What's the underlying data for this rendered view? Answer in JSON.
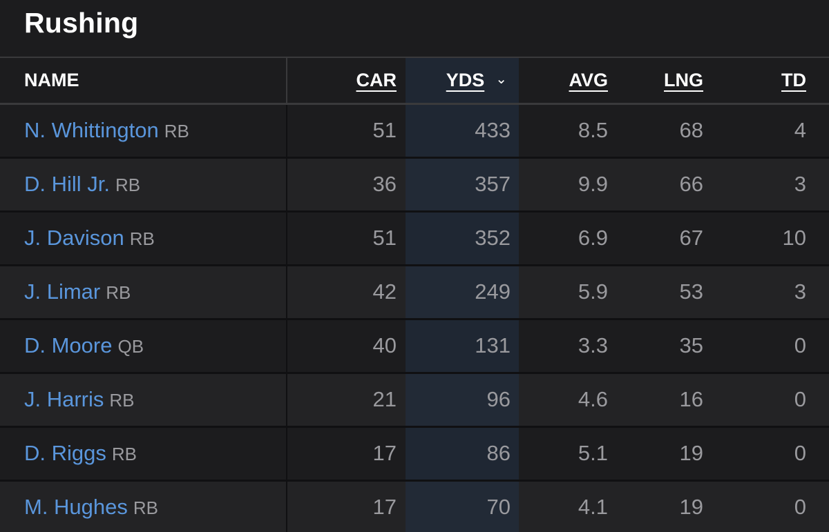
{
  "title": "Rushing",
  "headers": {
    "name": "NAME",
    "car": "CAR",
    "yds": "YDS",
    "avg": "AVG",
    "lng": "LNG",
    "td": "TD",
    "sort_indicator": "chevron-down-icon"
  },
  "colors": {
    "name_link": "#5a96dc",
    "sorted_column_bg": "#1f2733"
  },
  "rows": [
    {
      "name": "N. Whittington",
      "pos": "RB",
      "car": "51",
      "yds": "433",
      "avg": "8.5",
      "lng": "68",
      "td": "4"
    },
    {
      "name": "D. Hill Jr.",
      "pos": "RB",
      "car": "36",
      "yds": "357",
      "avg": "9.9",
      "lng": "66",
      "td": "3"
    },
    {
      "name": "J. Davison",
      "pos": "RB",
      "car": "51",
      "yds": "352",
      "avg": "6.9",
      "lng": "67",
      "td": "10"
    },
    {
      "name": "J. Limar",
      "pos": "RB",
      "car": "42",
      "yds": "249",
      "avg": "5.9",
      "lng": "53",
      "td": "3"
    },
    {
      "name": "D. Moore",
      "pos": "QB",
      "car": "40",
      "yds": "131",
      "avg": "3.3",
      "lng": "35",
      "td": "0"
    },
    {
      "name": "J. Harris",
      "pos": "RB",
      "car": "21",
      "yds": "96",
      "avg": "4.6",
      "lng": "16",
      "td": "0"
    },
    {
      "name": "D. Riggs",
      "pos": "RB",
      "car": "17",
      "yds": "86",
      "avg": "5.1",
      "lng": "19",
      "td": "0"
    },
    {
      "name": "M. Hughes",
      "pos": "RB",
      "car": "17",
      "yds": "70",
      "avg": "4.1",
      "lng": "19",
      "td": "0"
    }
  ]
}
